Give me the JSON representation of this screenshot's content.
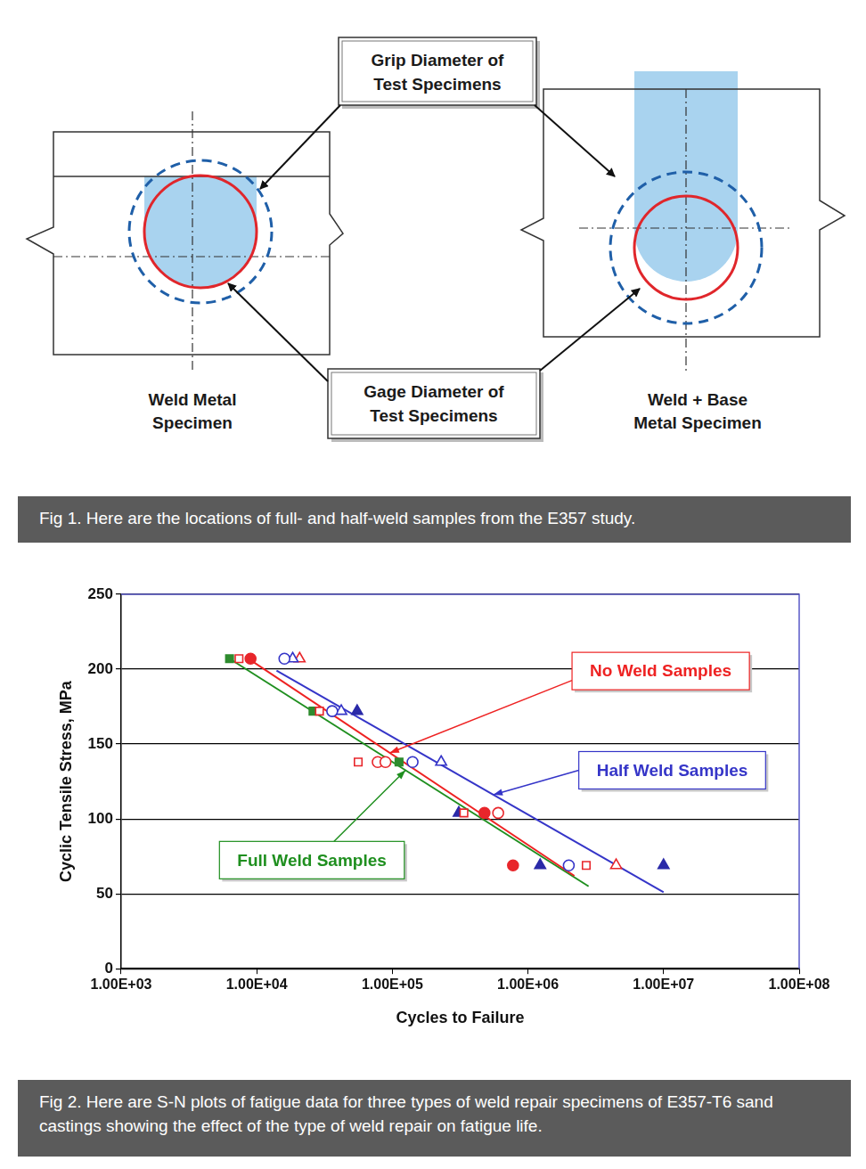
{
  "diagram": {
    "specimens": [
      "Weld Metal Specimen",
      "Weld + Base Metal Specimen"
    ],
    "callouts": [
      "Grip Diameter of Test Specimens",
      "Gage Diameter of Test Specimens"
    ],
    "caption": "Fig 1. Here are the locations of full- and half-weld samples from the E357 study."
  },
  "chart_data": {
    "type": "scatter",
    "x_label": "Cycles to Failure",
    "y_label": "Cyclic Tensile Stress, MPa",
    "log": "x",
    "xlim": [
      1000,
      100000000
    ],
    "xticks": [
      {
        "value": 1000,
        "label": "1.00E+03"
      },
      {
        "value": 10000,
        "label": "1.00E+04"
      },
      {
        "value": 100000,
        "label": "1.00E+05"
      },
      {
        "value": 1000000,
        "label": "1.00E+06"
      },
      {
        "value": 10000000,
        "label": "1.00E+07"
      },
      {
        "value": 100000000,
        "label": "1.00E+08"
      }
    ],
    "ylim": [
      0,
      250
    ],
    "yticks": [
      0,
      50,
      100,
      150,
      200,
      250
    ],
    "grid": "y",
    "series": [
      {
        "name": "No Weld Samples",
        "type": "line",
        "marker": "none",
        "line_style": "solid",
        "color": "#ee2222",
        "x": [
          9000,
          2200000
        ],
        "values": [
          206,
          62
        ]
      },
      {
        "name": "Half Weld Samples",
        "type": "line",
        "marker": "none",
        "line_style": "solid",
        "color": "#3535c8",
        "x": [
          14000,
          10000000
        ],
        "values": [
          199,
          51
        ]
      },
      {
        "name": "Full Weld Samples",
        "type": "line",
        "marker": "none",
        "line_style": "solid",
        "color": "#1f8f1f",
        "x": [
          6300,
          2800000
        ],
        "values": [
          207,
          55
        ]
      },
      {
        "color": "#e8262b",
        "marker": "circle",
        "x": [
          9000,
          478000,
          776000
        ],
        "values": [
          207,
          104,
          69
        ]
      },
      {
        "color": "#e8262b",
        "marker": "open_circle",
        "x": [
          78000,
          89000,
          603000
        ],
        "values": [
          138,
          138,
          104
        ]
      },
      {
        "color": "#e8262b",
        "marker": "open_square",
        "x": [
          7400,
          29000,
          56000,
          337000,
          2690000
        ],
        "values": [
          207,
          172,
          138,
          104,
          69
        ]
      },
      {
        "color": "#3535c8",
        "marker": "open_circle",
        "x": [
          16000,
          36000,
          141000,
          2000000
        ],
        "values": [
          207,
          172,
          138,
          69
        ]
      },
      {
        "color": "#3535c8",
        "marker": "open_triangle",
        "x": [
          18400,
          42000,
          229000
        ],
        "values": [
          207,
          172,
          138
        ]
      },
      {
        "color": "#e8262b",
        "marker": "open_triangle",
        "x": [
          20700,
          4470000
        ],
        "values": [
          207,
          69
        ]
      },
      {
        "color": "#2a2aa8",
        "marker": "triangle",
        "x": [
          55000,
          309000,
          1230000,
          10000000
        ],
        "values": [
          172,
          104,
          69,
          69
        ]
      },
      {
        "color": "#2e8b2e",
        "marker": "square",
        "x": [
          6300,
          26000,
          112000
        ],
        "values": [
          207,
          172,
          138
        ]
      }
    ]
  },
  "chart_caption": "Fig 2. Here are S-N plots of fatigue data for three types of weld repair specimens of E357-T6 sand castings showing the effect of the type of weld repair on fatigue life."
}
